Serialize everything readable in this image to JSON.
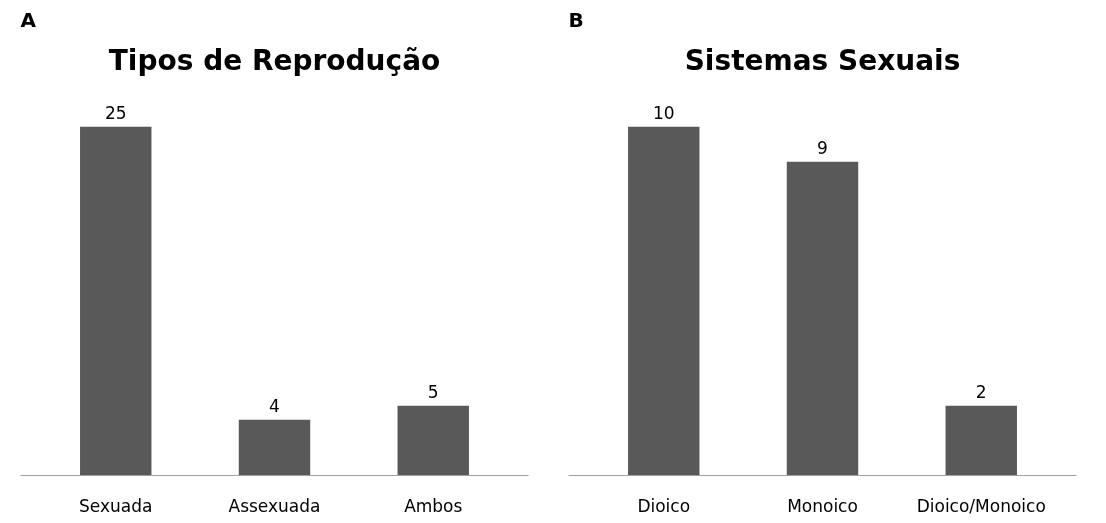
{
  "chart_data": [
    {
      "type": "bar",
      "title": "Tipos de Reprodução",
      "annotations": [
        "A"
      ],
      "categories": [
        "Sexuada",
        "Assexuada",
        "Ambos"
      ],
      "values": [
        25,
        4,
        5
      ],
      "color": "#595959",
      "data_labels": true,
      "grid": false
    },
    {
      "type": "bar",
      "title": "Sistemas Sexuais",
      "annotations": [
        "B"
      ],
      "categories": [
        "Dioico",
        "Monoico",
        "Dioico/Monoico"
      ],
      "values": [
        10,
        9,
        2
      ],
      "color": "#595959",
      "data_labels": true,
      "grid": false
    }
  ]
}
